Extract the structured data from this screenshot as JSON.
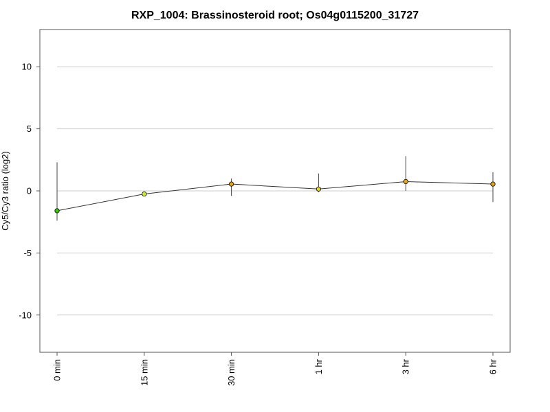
{
  "chart_data": {
    "type": "line",
    "title": "RXP_1004: Brassinosteroid root; Os04g0115200_31727",
    "xlabel": "",
    "ylabel": "Cy5/Cy3 ratio (log2)",
    "categories": [
      "0 min",
      "15 min",
      "30 min",
      "1 hr",
      "3 hr",
      "6 hr"
    ],
    "values": [
      -1.6,
      -0.25,
      0.55,
      0.15,
      0.75,
      0.55
    ],
    "error_low": [
      -2.4,
      -0.25,
      -0.4,
      -0.1,
      0.0,
      -0.9
    ],
    "error_high": [
      2.3,
      -0.25,
      1.0,
      1.4,
      2.8,
      1.5
    ],
    "point_colors": [
      "#33cc00",
      "#ccee33",
      "#e8a317",
      "#e8d317",
      "#e8a317",
      "#e8a317"
    ],
    "ylim": [
      -13,
      13
    ],
    "yticks": [
      10,
      5,
      0,
      -5,
      -10
    ],
    "ytick_labels": [
      "10",
      "5",
      "0",
      "-5",
      "-10"
    ],
    "grid": true,
    "line_color": "#333333"
  }
}
